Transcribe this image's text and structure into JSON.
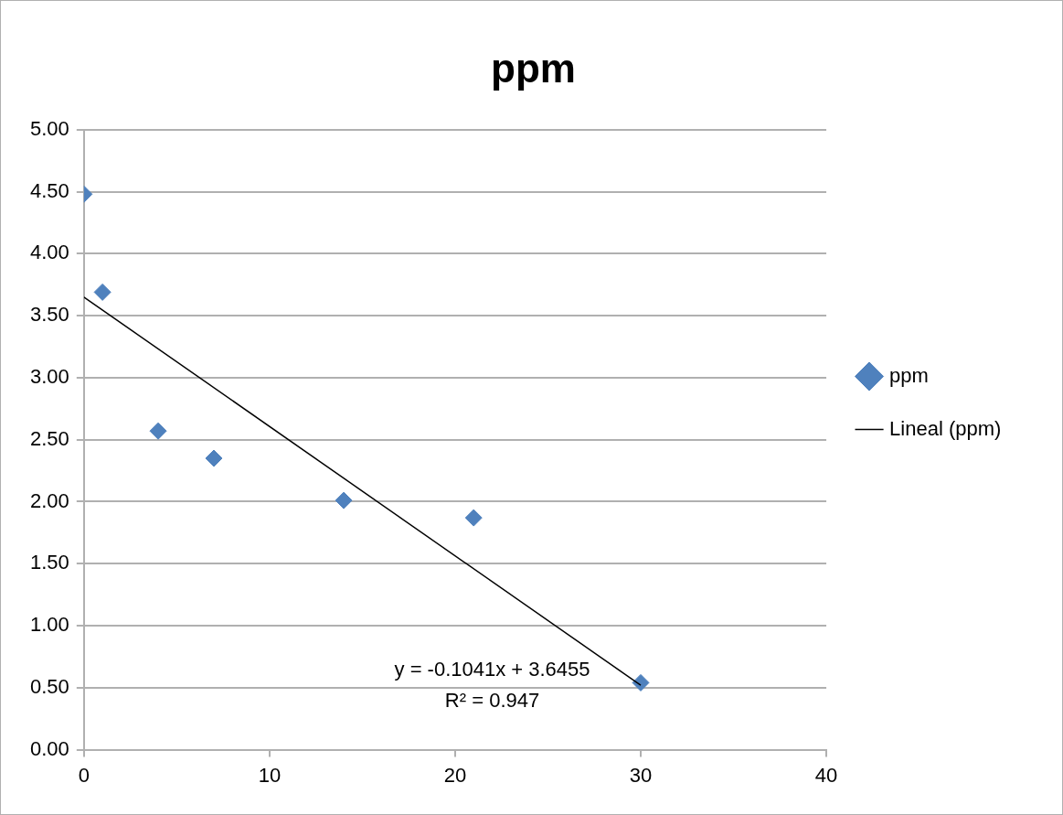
{
  "chart_data": {
    "type": "scatter",
    "title": "ppm",
    "series": [
      {
        "name": "ppm",
        "color": "#4f81bd",
        "x": [
          0,
          1,
          4,
          7,
          14,
          21,
          30
        ],
        "values": [
          4.48,
          3.69,
          2.57,
          2.35,
          2.01,
          1.87,
          0.54
        ],
        "marker": "diamond"
      },
      {
        "name": "Lineal (ppm)",
        "type": "line",
        "color": "#000000",
        "x": [
          0,
          30
        ],
        "values": [
          3.65,
          0.52
        ],
        "marker": "none"
      }
    ],
    "xlim": [
      0,
      40
    ],
    "xticks": [
      0,
      10,
      20,
      30,
      40
    ],
    "ylim": [
      0,
      5
    ],
    "yticks": [
      {
        "value": 0,
        "label": "0.00"
      },
      {
        "value": 0.5,
        "label": "0.50"
      },
      {
        "value": 1,
        "label": "1.00"
      },
      {
        "value": 1.5,
        "label": "1.50"
      },
      {
        "value": 2,
        "label": "2.00"
      },
      {
        "value": 2.5,
        "label": "2.50"
      },
      {
        "value": 3,
        "label": "3.00"
      },
      {
        "value": 3.5,
        "label": "3.50"
      },
      {
        "value": 4,
        "label": "4.00"
      },
      {
        "value": 4.5,
        "label": "4.50"
      },
      {
        "value": 5,
        "label": "5.00"
      }
    ],
    "grid": "y",
    "legend": "right",
    "annotations": [
      "y = -0.1041x + 3.6455",
      "R² = 0.947"
    ]
  }
}
